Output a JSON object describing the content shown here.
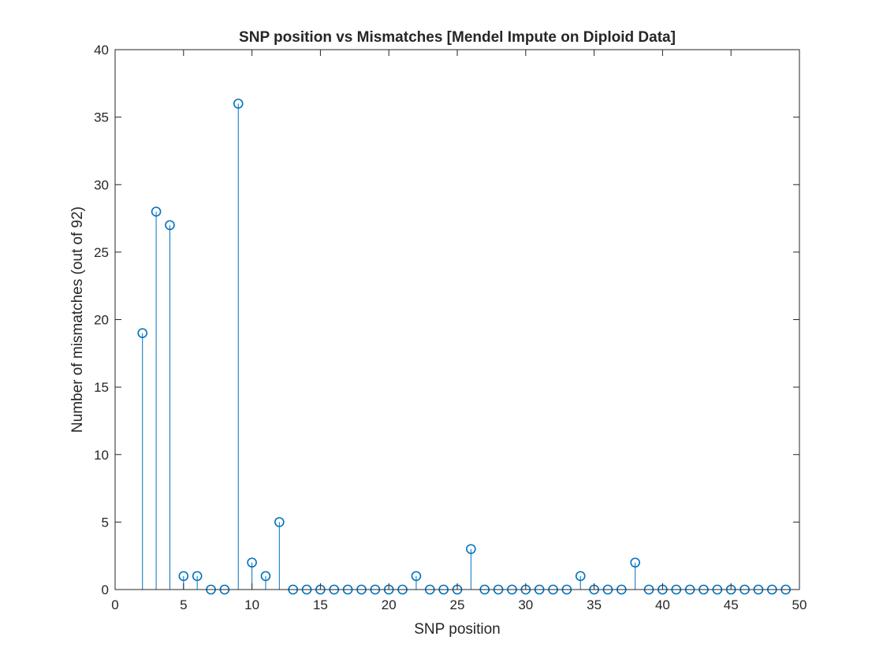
{
  "chart_data": {
    "type": "stem",
    "title": "SNP position vs Mismatches [Mendel Impute on Diploid Data]",
    "xlabel": "SNP position",
    "ylabel": "Number of mismatches (out of 92)",
    "xlim": [
      0,
      50
    ],
    "ylim": [
      0,
      40
    ],
    "xticks": [
      0,
      5,
      10,
      15,
      20,
      25,
      30,
      35,
      40,
      45,
      50
    ],
    "yticks": [
      0,
      5,
      10,
      15,
      20,
      25,
      30,
      35,
      40
    ],
    "grid": false,
    "series": [
      {
        "x": [
          2,
          3,
          4,
          5,
          6,
          7,
          8,
          9,
          10,
          11,
          12,
          13,
          14,
          15,
          16,
          17,
          18,
          19,
          20,
          21,
          22,
          23,
          24,
          25,
          26,
          27,
          28,
          29,
          30,
          31,
          32,
          33,
          34,
          35,
          36,
          37,
          38,
          39,
          40,
          41,
          42,
          43,
          44,
          45,
          46,
          47,
          48,
          49
        ],
        "values": [
          19,
          28,
          27,
          1,
          1,
          0,
          0,
          36,
          2,
          1,
          5,
          0,
          0,
          0,
          0,
          0,
          0,
          0,
          0,
          0,
          1,
          0,
          0,
          0,
          3,
          0,
          0,
          0,
          0,
          0,
          0,
          0,
          1,
          0,
          0,
          0,
          2,
          0,
          0,
          0,
          0,
          0,
          0,
          0,
          0,
          0,
          0,
          0
        ],
        "color": "#0072BD"
      }
    ]
  }
}
